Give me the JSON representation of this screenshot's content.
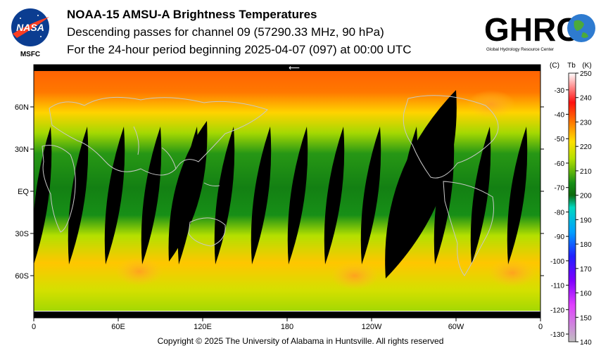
{
  "header": {
    "nasa_logo_text": "NASA",
    "nasa_sub": "MSFC",
    "ghrc_logo_text": "GHRC",
    "ghrc_sub": "Global Hydrology Resource Center",
    "title": "NOAA-15 AMSU-A Brightness Temperatures",
    "subtitle": "Descending passes for channel 09 (57290.33 MHz, 90 hPa)",
    "period": "For the 24-hour period beginning 2025-04-07 (097) at 00:00 UTC"
  },
  "footer": {
    "copyright": "Copyright © 2025 The University of Alabama in Huntsville.  All rights reserved"
  },
  "chart_data": {
    "type": "heatmap",
    "title": "NOAA-15 AMSU-A Brightness Temperatures",
    "x_ticks": [
      "0",
      "60E",
      "120E",
      "180",
      "120W",
      "60W",
      "0"
    ],
    "y_ticks": [
      "60N",
      "30N",
      "EQ",
      "30S",
      "60S"
    ],
    "x_range": [
      0,
      360
    ],
    "y_range": [
      90,
      -90
    ],
    "colorbar": {
      "header_c": "(C)",
      "header_tb": "Tb",
      "header_k": "(K)",
      "range_k": [
        140,
        250
      ],
      "kelvin_ticks": [
        250,
        240,
        230,
        220,
        210,
        200,
        190,
        180,
        170,
        160,
        150,
        140
      ],
      "celsius_ticks": [
        -30,
        -40,
        -50,
        -60,
        -70,
        -80,
        -90,
        -100,
        -110,
        -120,
        -130
      ],
      "stops": [
        {
          "k": 250,
          "color": "#ffffff"
        },
        {
          "k": 245,
          "color": "#ff9a9a"
        },
        {
          "k": 238,
          "color": "#ff1010"
        },
        {
          "k": 230,
          "color": "#ff7800"
        },
        {
          "k": 222,
          "color": "#ffe000"
        },
        {
          "k": 215,
          "color": "#b4e000"
        },
        {
          "k": 205,
          "color": "#178f17"
        },
        {
          "k": 200,
          "color": "#0d6a0d"
        },
        {
          "k": 195,
          "color": "#00d8c0"
        },
        {
          "k": 185,
          "color": "#00a0ff"
        },
        {
          "k": 175,
          "color": "#2020ff"
        },
        {
          "k": 165,
          "color": "#8000ff"
        },
        {
          "k": 155,
          "color": "#e040ff"
        },
        {
          "k": 140,
          "color": "#c0c0c0"
        }
      ]
    },
    "zones": [
      {
        "lat": 90,
        "k": 232
      },
      {
        "lat": 70,
        "k": 230
      },
      {
        "lat": 55,
        "k": 223
      },
      {
        "lat": 40,
        "k": 214
      },
      {
        "lat": 25,
        "k": 206
      },
      {
        "lat": 0,
        "k": 203
      },
      {
        "lat": -20,
        "k": 205
      },
      {
        "lat": -35,
        "k": 215
      },
      {
        "lat": -55,
        "k": 224
      },
      {
        "lat": -75,
        "k": 218
      },
      {
        "lat": -90,
        "k": 214
      }
    ],
    "warm_spots": [
      {
        "name": "southern-indian-ocean-warm-spot",
        "lon": 75,
        "lat": -57
      },
      {
        "name": "south-pacific-warm-spot",
        "lon": 228,
        "lat": -60
      },
      {
        "name": "south-atlantic-warm-spot",
        "lon": 340,
        "lat": -58
      },
      {
        "name": "north-atlantic-warm-spot",
        "lon": 325,
        "lat": 62
      }
    ],
    "swath_gaps": [
      {
        "lon_north": 12,
        "lon_south": 0
      },
      {
        "lon_north": 38,
        "lon_south": 25
      },
      {
        "lon_north": 64,
        "lon_south": 51
      },
      {
        "lon_north": 90,
        "lon_south": 77
      },
      {
        "lon_north": 116,
        "lon_south": 103
      },
      {
        "lon_north": 142,
        "lon_south": 129
      },
      {
        "lon_north": 168,
        "lon_south": 155
      },
      {
        "lon_north": 194,
        "lon_south": 181
      },
      {
        "lon_north": 220,
        "lon_south": 207
      },
      {
        "lon_north": 246,
        "lon_south": 233
      },
      {
        "lon_north": 272,
        "lon_south": 259
      },
      {
        "lon_north": 298,
        "lon_south": 285
      },
      {
        "lon_north": 324,
        "lon_south": 311
      },
      {
        "lon_north": 350,
        "lon_south": 337
      }
    ],
    "missing_regions": [
      {
        "name": "missing-wide-swath-pacific",
        "lon_range": [
          250,
          300
        ],
        "lat_range": [
          -62,
          72
        ]
      },
      {
        "name": "missing-swath-west-pacific",
        "lon_range": [
          96,
          123
        ],
        "lat_range": [
          -50,
          50
        ]
      }
    ]
  }
}
